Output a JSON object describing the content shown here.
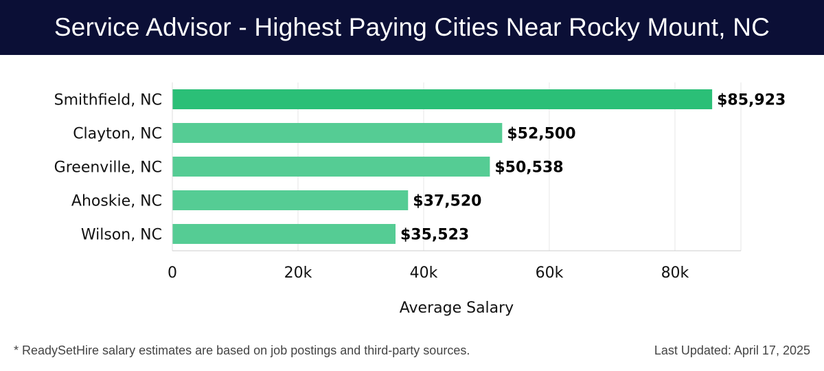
{
  "header": {
    "title": "Service Advisor - Highest Paying Cities Near Rocky Mount, NC"
  },
  "chart_data": {
    "type": "bar",
    "orientation": "horizontal",
    "categories": [
      "Smithfield, NC",
      "Clayton, NC",
      "Greenville, NC",
      "Ahoskie, NC",
      "Wilson, NC"
    ],
    "values": [
      85923,
      52500,
      50538,
      37520,
      35523
    ],
    "value_labels": [
      "$85,923",
      "$52,500",
      "$50,538",
      "$37,520",
      "$35,523"
    ],
    "title": "Service Advisor - Highest Paying Cities Near Rocky Mount, NC",
    "xlabel": "Average Salary",
    "ylabel": "",
    "xlim": [
      0,
      90500
    ],
    "xticks": [
      0,
      20000,
      40000,
      60000,
      80000
    ],
    "xtick_labels": [
      "0",
      "20k",
      "40k",
      "60k",
      "80k"
    ],
    "grid": true,
    "colors": {
      "top_bar": "#2bbf77",
      "bar": "#55cc94"
    }
  },
  "footer": {
    "note": "* ReadySetHire salary estimates are based on job postings and third-party sources.",
    "updated": "Last Updated: April 17, 2025"
  }
}
